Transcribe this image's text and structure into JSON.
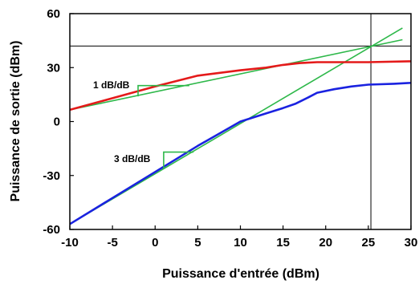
{
  "chart_data": {
    "type": "line",
    "xlabel": "Puissance d'entrée (dBm)",
    "ylabel": "Puissance de sortie (dBm)",
    "xlim": [
      -10,
      30
    ],
    "ylim": [
      -60,
      60
    ],
    "xticks": [
      "-10",
      "-5",
      "0",
      "5",
      "10",
      "15",
      "20",
      "25",
      "30"
    ],
    "yticks": [
      "60",
      "30",
      "0",
      "-30",
      "-60"
    ],
    "grid": false,
    "colors": {
      "red": "#e41a1a",
      "blue": "#1a22e0",
      "green": "#2eb84a",
      "black": "#000000"
    },
    "series": [
      {
        "color": "red",
        "x": [
          -10,
          -5,
          0,
          5,
          10,
          13,
          15,
          17,
          19,
          21,
          25,
          30
        ],
        "y": [
          6.5,
          13,
          19.5,
          25.5,
          28.5,
          30,
          31.5,
          32.5,
          33,
          33,
          33,
          33.5
        ]
      },
      {
        "color": "blue",
        "x": [
          -10,
          -5,
          0,
          5,
          10,
          13,
          15,
          16.5,
          18,
          19,
          21,
          23,
          25,
          28,
          30
        ],
        "y": [
          -57,
          -42.5,
          -28,
          -13.5,
          0,
          4.5,
          7.5,
          10,
          13.5,
          16,
          18,
          19.5,
          20.5,
          21,
          21.5
        ]
      },
      {
        "color": "green",
        "x": [
          -10,
          29
        ],
        "y": [
          6.5,
          45.5
        ]
      },
      {
        "color": "green",
        "x": [
          -10,
          29
        ],
        "y": [
          -57,
          52
        ]
      }
    ],
    "annotations": [
      {
        "text": "1 dB/dB",
        "x": -2,
        "y": 21
      },
      {
        "text": "3 dB/dB",
        "x": 1,
        "y": -20
      }
    ],
    "intercept_lines": {
      "x": 25.3,
      "y": 42
    },
    "slope_markers": [
      {
        "x0": -2,
        "y0": 14,
        "x1": 4,
        "y1": 20
      },
      {
        "x0": 1,
        "y0": -26,
        "x1": 4.5,
        "y1": -17
      }
    ]
  }
}
